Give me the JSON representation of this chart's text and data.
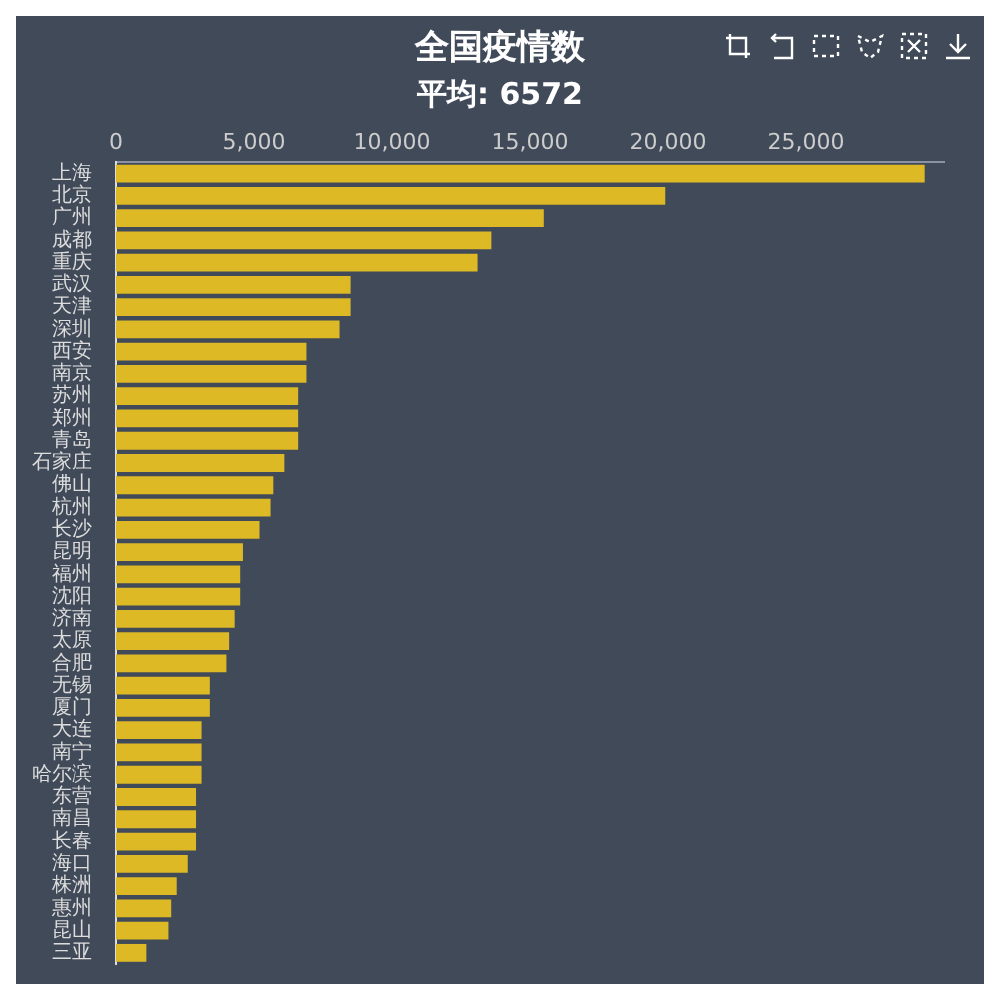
{
  "chart_data": {
    "type": "bar",
    "orientation": "horizontal",
    "title": "全国疫情数",
    "annotations": [
      "平均: 6572"
    ],
    "categories": [
      "上海",
      "北京",
      "广州",
      "成都",
      "重庆",
      "武汉",
      "天津",
      "深圳",
      "西安",
      "南京",
      "苏州",
      "郑州",
      "青岛",
      "石家庄",
      "佛山",
      "杭州",
      "长沙",
      "昆明",
      "福州",
      "沈阳",
      "济南",
      "太原",
      "合肥",
      "无锡",
      "厦门",
      "大连",
      "南宁",
      "哈尔滨",
      "东营",
      "南昌",
      "长春",
      "海口",
      "株洲",
      "惠州",
      "昆山",
      "三亚"
    ],
    "values": [
      29300,
      19900,
      15500,
      13600,
      13100,
      8500,
      8500,
      8100,
      6900,
      6900,
      6600,
      6600,
      6600,
      6100,
      5700,
      5600,
      5200,
      4600,
      4500,
      4500,
      4300,
      4100,
      4000,
      3400,
      3400,
      3100,
      3100,
      3100,
      2900,
      2900,
      2900,
      2600,
      2200,
      2000,
      1900,
      1100
    ],
    "color": "#ddb926",
    "xlim": [
      0,
      30000
    ],
    "xticks": [
      0,
      {
        "value": 5000,
        "label": "5,000"
      },
      {
        "value": 10000,
        "label": "10,000"
      },
      {
        "value": 15000,
        "label": "15,000"
      },
      {
        "value": 20000,
        "label": "20,000"
      },
      {
        "value": 25000,
        "label": "25,000"
      }
    ],
    "grid": false,
    "legend": false
  }
}
